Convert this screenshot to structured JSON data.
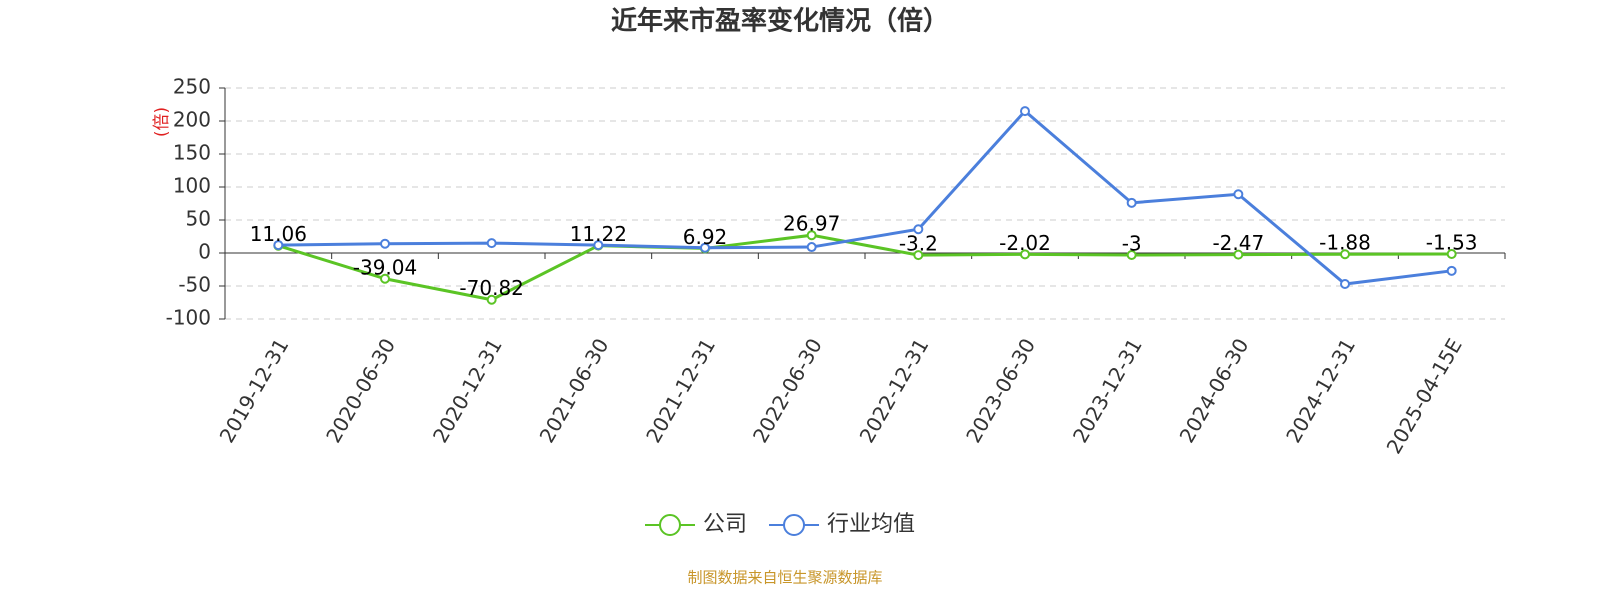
{
  "chart_data": {
    "type": "line",
    "title": "近年来市盈率变化情况（倍）",
    "y_label": "(倍)",
    "source": "制图数据来自恒生聚源数据库",
    "categories": [
      "2019-12-31",
      "2020-06-30",
      "2020-12-31",
      "2021-06-30",
      "2021-12-31",
      "2022-06-30",
      "2022-12-31",
      "2023-06-30",
      "2023-12-31",
      "2024-06-30",
      "2024-12-31",
      "2025-04-15E"
    ],
    "series": [
      {
        "name": "公司",
        "color": "#5bc425",
        "show_labels": true,
        "values": [
          11.06,
          -39.04,
          -70.82,
          11.22,
          6.92,
          26.97,
          -3.2,
          -2.02,
          -3,
          -2.47,
          -1.88,
          -1.53
        ]
      },
      {
        "name": "行业均值",
        "color": "#4b7fdc",
        "show_labels": false,
        "values": [
          12,
          14,
          15,
          12,
          8,
          9,
          36,
          215,
          76,
          89,
          -47,
          -27
        ]
      }
    ],
    "ylim": [
      -100,
      250
    ],
    "yticks": [
      -100,
      -50,
      0,
      50,
      100,
      150,
      200,
      250
    ],
    "grid": true,
    "legend": "bottom"
  }
}
